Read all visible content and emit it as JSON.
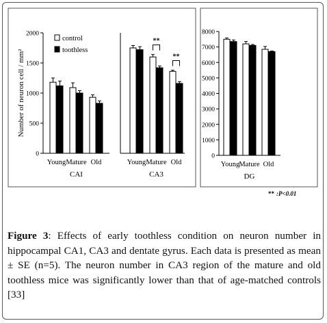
{
  "chart_data": [
    {
      "type": "bar",
      "panel": "CA1",
      "xlabel": "CAI",
      "ylabel": "Number of neuron cell / mm²",
      "ylim": [
        0,
        2000
      ],
      "yticks": [
        "0",
        "500",
        "1000",
        "1500",
        "2000"
      ],
      "categories": [
        "Young",
        "Mature",
        "Old"
      ],
      "series": [
        {
          "name": "control",
          "values": [
            1180,
            1090,
            930
          ],
          "errors": [
            70,
            80,
            40
          ],
          "color": "#ffffff"
        },
        {
          "name": "toothless",
          "values": [
            1120,
            1000,
            830
          ],
          "errors": [
            80,
            40,
            40
          ],
          "color": "#000000"
        }
      ],
      "significance": [],
      "legend": "top-left"
    },
    {
      "type": "bar",
      "panel": "CA3",
      "xlabel": "CA3",
      "ylim": [
        0,
        2000
      ],
      "categories": [
        "Young",
        "Mature",
        "Old"
      ],
      "series": [
        {
          "name": "control",
          "values": [
            1750,
            1600,
            1360
          ],
          "errors": [
            40,
            40,
            20
          ],
          "color": "#ffffff"
        },
        {
          "name": "toothless",
          "values": [
            1720,
            1420,
            1160
          ],
          "errors": [
            50,
            30,
            30
          ],
          "color": "#000000"
        }
      ],
      "significance": [
        {
          "category": "Mature",
          "label": "**"
        },
        {
          "category": "Old",
          "label": "**"
        }
      ]
    },
    {
      "type": "bar",
      "panel": "DG",
      "xlabel": "DG",
      "ylim": [
        0,
        8000
      ],
      "yticks": [
        "0",
        "1000",
        "2000",
        "3000",
        "4000",
        "5000",
        "6000",
        "7000",
        "8000"
      ],
      "categories": [
        "Young",
        "Mature",
        "Old"
      ],
      "series": [
        {
          "name": "control",
          "values": [
            7500,
            7200,
            6850
          ],
          "errors": [
            80,
            150,
            180
          ],
          "color": "#ffffff"
        },
        {
          "name": "toothless",
          "values": [
            7350,
            7100,
            6700
          ],
          "errors": [
            100,
            60,
            40
          ],
          "color": "#000000"
        }
      ],
      "significance": []
    }
  ],
  "note": {
    "stars": "**",
    "text": ":P<0.01"
  },
  "caption": {
    "label": "Figure 3",
    "text": ": Effects of early toothless condition on neuron number in hippocampal CA1, CA3 and dentate gyrus. Each data is presented as mean ± SE (n=5). The neuron number in CA3 region of the mature and old toothless mice was significantly lower than that of age-matched controls [33]"
  }
}
